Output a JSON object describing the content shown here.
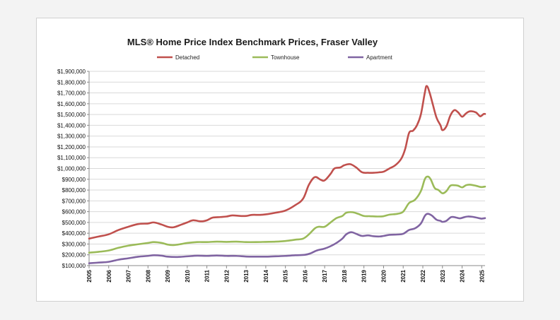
{
  "chart_data": {
    "type": "line",
    "title": "MLS® Home Price Index Benchmark Prices, Fraser Valley",
    "xlabel": "",
    "ylabel": "",
    "ylim": [
      100000,
      1900000
    ],
    "xlim": [
      2005.0,
      2025.17
    ],
    "grid": true,
    "legend_position": "top",
    "y_ticks": [
      {
        "value": 100000,
        "label": "$100,000"
      },
      {
        "value": 200000,
        "label": "$200,000"
      },
      {
        "value": 300000,
        "label": "$300,000"
      },
      {
        "value": 400000,
        "label": "$400,000"
      },
      {
        "value": 500000,
        "label": "$500,000"
      },
      {
        "value": 600000,
        "label": "$600,000"
      },
      {
        "value": 700000,
        "label": "$700,000"
      },
      {
        "value": 800000,
        "label": "$800,000"
      },
      {
        "value": 900000,
        "label": "$900,000"
      },
      {
        "value": 1000000,
        "label": "$1,000,000"
      },
      {
        "value": 1100000,
        "label": "$1,100,000"
      },
      {
        "value": 1200000,
        "label": "$1,200,000"
      },
      {
        "value": 1300000,
        "label": "$1,300,000"
      },
      {
        "value": 1400000,
        "label": "$1,400,000"
      },
      {
        "value": 1500000,
        "label": "$1,500,000"
      },
      {
        "value": 1600000,
        "label": "$1,600,000"
      },
      {
        "value": 1700000,
        "label": "$1,700,000"
      },
      {
        "value": 1800000,
        "label": "$1,800,000"
      },
      {
        "value": 1900000,
        "label": "$1,900,000"
      }
    ],
    "x_ticks": [
      {
        "value": 2005,
        "label": "2005"
      },
      {
        "value": 2006,
        "label": "2006"
      },
      {
        "value": 2007,
        "label": "2007"
      },
      {
        "value": 2008,
        "label": "2008"
      },
      {
        "value": 2009,
        "label": "2009"
      },
      {
        "value": 2010,
        "label": "2010"
      },
      {
        "value": 2011,
        "label": "2011"
      },
      {
        "value": 2012,
        "label": "2012"
      },
      {
        "value": 2013,
        "label": "2013"
      },
      {
        "value": 2014,
        "label": "2014"
      },
      {
        "value": 2015,
        "label": "2015"
      },
      {
        "value": 2016,
        "label": "2016"
      },
      {
        "value": 2017,
        "label": "2017"
      },
      {
        "value": 2018,
        "label": "2018"
      },
      {
        "value": 2019,
        "label": "2019"
      },
      {
        "value": 2020,
        "label": "2020"
      },
      {
        "value": 2021,
        "label": "2021"
      },
      {
        "value": 2022,
        "label": "2022"
      },
      {
        "value": 2023,
        "label": "2023"
      },
      {
        "value": 2024,
        "label": "2024"
      },
      {
        "value": 2025,
        "label": "2025"
      }
    ],
    "series": [
      {
        "name": "Detached",
        "color": "#c0504d",
        "points": [
          [
            2005.0,
            350000
          ],
          [
            2005.5,
            370000
          ],
          [
            2006.0,
            390000
          ],
          [
            2006.5,
            430000
          ],
          [
            2007.0,
            460000
          ],
          [
            2007.5,
            485000
          ],
          [
            2008.0,
            490000
          ],
          [
            2008.3,
            500000
          ],
          [
            2008.7,
            480000
          ],
          [
            2009.0,
            460000
          ],
          [
            2009.3,
            455000
          ],
          [
            2009.7,
            480000
          ],
          [
            2010.0,
            500000
          ],
          [
            2010.3,
            520000
          ],
          [
            2010.7,
            510000
          ],
          [
            2011.0,
            520000
          ],
          [
            2011.3,
            545000
          ],
          [
            2011.7,
            550000
          ],
          [
            2012.0,
            555000
          ],
          [
            2012.3,
            565000
          ],
          [
            2012.7,
            560000
          ],
          [
            2013.0,
            560000
          ],
          [
            2013.3,
            570000
          ],
          [
            2013.7,
            570000
          ],
          [
            2014.0,
            575000
          ],
          [
            2014.5,
            590000
          ],
          [
            2015.0,
            610000
          ],
          [
            2015.5,
            660000
          ],
          [
            2015.9,
            720000
          ],
          [
            2016.2,
            850000
          ],
          [
            2016.5,
            920000
          ],
          [
            2016.8,
            895000
          ],
          [
            2017.0,
            890000
          ],
          [
            2017.3,
            950000
          ],
          [
            2017.5,
            1000000
          ],
          [
            2017.8,
            1010000
          ],
          [
            2018.0,
            1030000
          ],
          [
            2018.3,
            1040000
          ],
          [
            2018.6,
            1010000
          ],
          [
            2018.9,
            965000
          ],
          [
            2019.2,
            960000
          ],
          [
            2019.5,
            960000
          ],
          [
            2019.8,
            965000
          ],
          [
            2020.0,
            970000
          ],
          [
            2020.3,
            1000000
          ],
          [
            2020.6,
            1030000
          ],
          [
            2020.9,
            1090000
          ],
          [
            2021.1,
            1180000
          ],
          [
            2021.3,
            1330000
          ],
          [
            2021.5,
            1350000
          ],
          [
            2021.7,
            1400000
          ],
          [
            2021.9,
            1500000
          ],
          [
            2022.1,
            1700000
          ],
          [
            2022.2,
            1765000
          ],
          [
            2022.35,
            1700000
          ],
          [
            2022.5,
            1600000
          ],
          [
            2022.7,
            1470000
          ],
          [
            2022.9,
            1400000
          ],
          [
            2023.0,
            1355000
          ],
          [
            2023.2,
            1390000
          ],
          [
            2023.4,
            1490000
          ],
          [
            2023.6,
            1540000
          ],
          [
            2023.8,
            1520000
          ],
          [
            2024.0,
            1480000
          ],
          [
            2024.2,
            1510000
          ],
          [
            2024.4,
            1530000
          ],
          [
            2024.7,
            1520000
          ],
          [
            2024.9,
            1485000
          ],
          [
            2025.0,
            1490000
          ],
          [
            2025.1,
            1505000
          ],
          [
            2025.17,
            1505000
          ]
        ]
      },
      {
        "name": "Townhouse",
        "color": "#9bbb59",
        "points": [
          [
            2005.0,
            220000
          ],
          [
            2005.5,
            228000
          ],
          [
            2006.0,
            240000
          ],
          [
            2006.5,
            265000
          ],
          [
            2007.0,
            285000
          ],
          [
            2007.5,
            298000
          ],
          [
            2008.0,
            310000
          ],
          [
            2008.3,
            318000
          ],
          [
            2008.7,
            310000
          ],
          [
            2009.0,
            295000
          ],
          [
            2009.3,
            290000
          ],
          [
            2009.7,
            300000
          ],
          [
            2010.0,
            310000
          ],
          [
            2010.5,
            318000
          ],
          [
            2011.0,
            318000
          ],
          [
            2011.5,
            322000
          ],
          [
            2012.0,
            320000
          ],
          [
            2012.5,
            322000
          ],
          [
            2013.0,
            318000
          ],
          [
            2013.5,
            318000
          ],
          [
            2014.0,
            320000
          ],
          [
            2014.5,
            322000
          ],
          [
            2015.0,
            328000
          ],
          [
            2015.5,
            340000
          ],
          [
            2015.9,
            350000
          ],
          [
            2016.2,
            390000
          ],
          [
            2016.5,
            445000
          ],
          [
            2016.7,
            460000
          ],
          [
            2017.0,
            460000
          ],
          [
            2017.3,
            500000
          ],
          [
            2017.6,
            540000
          ],
          [
            2017.9,
            560000
          ],
          [
            2018.1,
            590000
          ],
          [
            2018.4,
            595000
          ],
          [
            2018.7,
            580000
          ],
          [
            2019.0,
            560000
          ],
          [
            2019.3,
            558000
          ],
          [
            2019.7,
            555000
          ],
          [
            2020.0,
            558000
          ],
          [
            2020.3,
            572000
          ],
          [
            2020.7,
            580000
          ],
          [
            2021.0,
            600000
          ],
          [
            2021.3,
            680000
          ],
          [
            2021.6,
            710000
          ],
          [
            2021.9,
            790000
          ],
          [
            2022.1,
            900000
          ],
          [
            2022.25,
            925000
          ],
          [
            2022.4,
            900000
          ],
          [
            2022.6,
            820000
          ],
          [
            2022.8,
            800000
          ],
          [
            2023.0,
            770000
          ],
          [
            2023.2,
            790000
          ],
          [
            2023.4,
            840000
          ],
          [
            2023.6,
            845000
          ],
          [
            2023.8,
            840000
          ],
          [
            2024.0,
            825000
          ],
          [
            2024.2,
            845000
          ],
          [
            2024.4,
            850000
          ],
          [
            2024.7,
            840000
          ],
          [
            2024.9,
            830000
          ],
          [
            2025.0,
            828000
          ],
          [
            2025.17,
            832000
          ]
        ]
      },
      {
        "name": "Apartment",
        "color": "#8064a2",
        "points": [
          [
            2005.0,
            122000
          ],
          [
            2005.5,
            128000
          ],
          [
            2006.0,
            135000
          ],
          [
            2006.5,
            155000
          ],
          [
            2007.0,
            168000
          ],
          [
            2007.5,
            182000
          ],
          [
            2008.0,
            190000
          ],
          [
            2008.3,
            196000
          ],
          [
            2008.7,
            192000
          ],
          [
            2009.0,
            183000
          ],
          [
            2009.5,
            180000
          ],
          [
            2010.0,
            186000
          ],
          [
            2010.5,
            192000
          ],
          [
            2011.0,
            190000
          ],
          [
            2011.5,
            194000
          ],
          [
            2012.0,
            190000
          ],
          [
            2012.5,
            190000
          ],
          [
            2013.0,
            184000
          ],
          [
            2013.5,
            183000
          ],
          [
            2014.0,
            183000
          ],
          [
            2014.5,
            186000
          ],
          [
            2015.0,
            190000
          ],
          [
            2015.5,
            196000
          ],
          [
            2016.0,
            200000
          ],
          [
            2016.3,
            215000
          ],
          [
            2016.6,
            240000
          ],
          [
            2017.0,
            258000
          ],
          [
            2017.3,
            280000
          ],
          [
            2017.6,
            310000
          ],
          [
            2017.9,
            350000
          ],
          [
            2018.1,
            390000
          ],
          [
            2018.35,
            410000
          ],
          [
            2018.6,
            395000
          ],
          [
            2018.9,
            375000
          ],
          [
            2019.2,
            380000
          ],
          [
            2019.5,
            372000
          ],
          [
            2019.8,
            370000
          ],
          [
            2020.0,
            375000
          ],
          [
            2020.3,
            385000
          ],
          [
            2020.7,
            388000
          ],
          [
            2021.0,
            395000
          ],
          [
            2021.3,
            430000
          ],
          [
            2021.6,
            445000
          ],
          [
            2021.9,
            490000
          ],
          [
            2022.1,
            560000
          ],
          [
            2022.25,
            580000
          ],
          [
            2022.45,
            565000
          ],
          [
            2022.7,
            525000
          ],
          [
            2022.9,
            515000
          ],
          [
            2023.0,
            505000
          ],
          [
            2023.2,
            515000
          ],
          [
            2023.45,
            550000
          ],
          [
            2023.7,
            545000
          ],
          [
            2023.9,
            538000
          ],
          [
            2024.1,
            548000
          ],
          [
            2024.3,
            555000
          ],
          [
            2024.6,
            550000
          ],
          [
            2024.9,
            538000
          ],
          [
            2025.0,
            535000
          ],
          [
            2025.17,
            540000
          ]
        ]
      }
    ]
  }
}
